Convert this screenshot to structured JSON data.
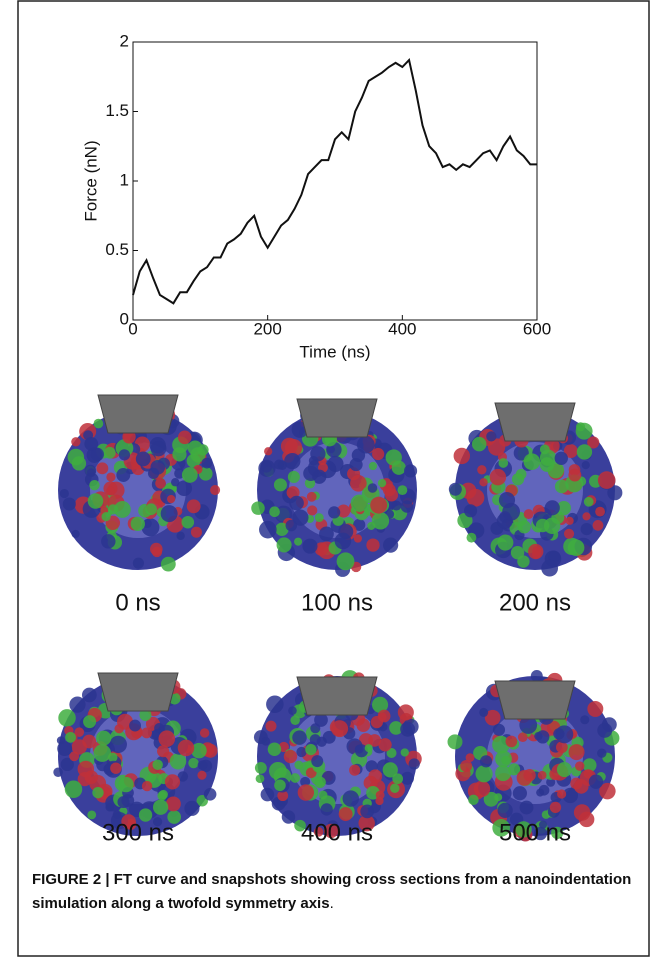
{
  "chart_data": {
    "type": "line",
    "xlabel": "Time (ns)",
    "ylabel": "Force (nN)",
    "color": "#111111",
    "x": [
      0,
      10,
      20,
      30,
      40,
      50,
      60,
      70,
      80,
      90,
      100,
      110,
      120,
      130,
      140,
      150,
      160,
      170,
      180,
      190,
      200,
      210,
      220,
      230,
      240,
      250,
      260,
      270,
      280,
      290,
      300,
      310,
      320,
      330,
      340,
      350,
      360,
      370,
      380,
      390,
      400,
      410,
      420,
      430,
      440,
      450,
      460,
      470,
      480,
      490,
      500,
      510,
      520,
      530,
      540,
      550,
      560,
      570,
      580,
      590,
      600
    ],
    "values": [
      0.18,
      0.35,
      0.43,
      0.3,
      0.18,
      0.15,
      0.12,
      0.2,
      0.2,
      0.28,
      0.35,
      0.38,
      0.45,
      0.45,
      0.55,
      0.58,
      0.62,
      0.7,
      0.75,
      0.6,
      0.52,
      0.6,
      0.68,
      0.72,
      0.8,
      0.9,
      1.05,
      1.1,
      1.15,
      1.15,
      1.3,
      1.35,
      1.3,
      1.5,
      1.6,
      1.72,
      1.75,
      1.78,
      1.82,
      1.85,
      1.82,
      1.87,
      1.65,
      1.4,
      1.25,
      1.2,
      1.1,
      1.12,
      1.08,
      1.12,
      1.1,
      1.15,
      1.2,
      1.22,
      1.15,
      1.25,
      1.32,
      1.22,
      1.18,
      1.12,
      1.12
    ],
    "xlim": [
      0,
      600
    ],
    "xticks": [
      0,
      200,
      400,
      600
    ],
    "ylim": [
      0,
      2
    ],
    "yticks": [
      0,
      0.5,
      1,
      1.5,
      2
    ]
  },
  "snapshots": [
    "0 ns",
    "100 ns",
    "200 ns",
    "300 ns",
    "400 ns",
    "500 ns"
  ],
  "caption": {
    "bold": "FIGURE 2 | FT curve and snapshots showing cross sections from a nanoindentation simulation along a twofold symmetry axis",
    "end": "."
  }
}
